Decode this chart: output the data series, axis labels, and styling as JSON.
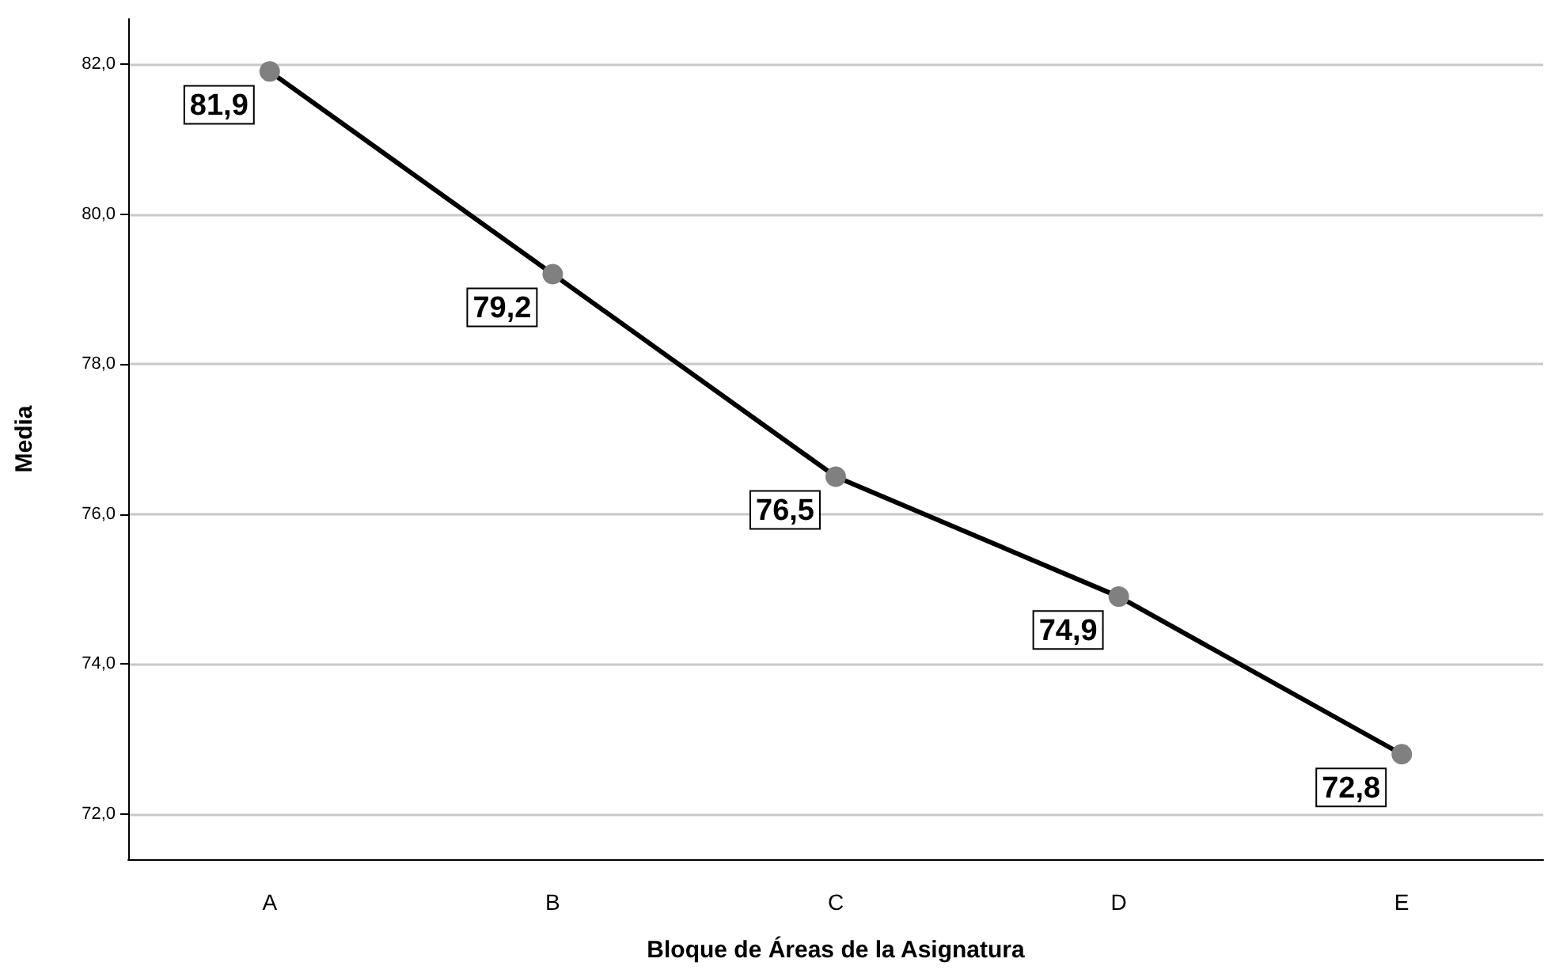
{
  "chart_data": {
    "type": "line",
    "xlabel": "Bloque de Áreas de la Asignatura",
    "ylabel": "Media",
    "categories": [
      "A",
      "B",
      "C",
      "D",
      "E"
    ],
    "series": [
      {
        "color": "#000000",
        "values": [
          81.9,
          79.2,
          76.5,
          74.9,
          72.8
        ],
        "value_labels": [
          "81,9",
          "79,2",
          "76,5",
          "74,9",
          "72,8"
        ]
      }
    ],
    "ylim": [
      71.4,
      82.6
    ],
    "yticks": [
      {
        "value": 72,
        "label": "72,0"
      },
      {
        "value": 74,
        "label": "74,0"
      },
      {
        "value": 76,
        "label": "76,0"
      },
      {
        "value": 78,
        "label": "78,0"
      },
      {
        "value": 80,
        "label": "80,0"
      },
      {
        "value": 82,
        "label": "82,0"
      }
    ],
    "grid": "y",
    "marker": "circle",
    "line_style": "solid"
  }
}
